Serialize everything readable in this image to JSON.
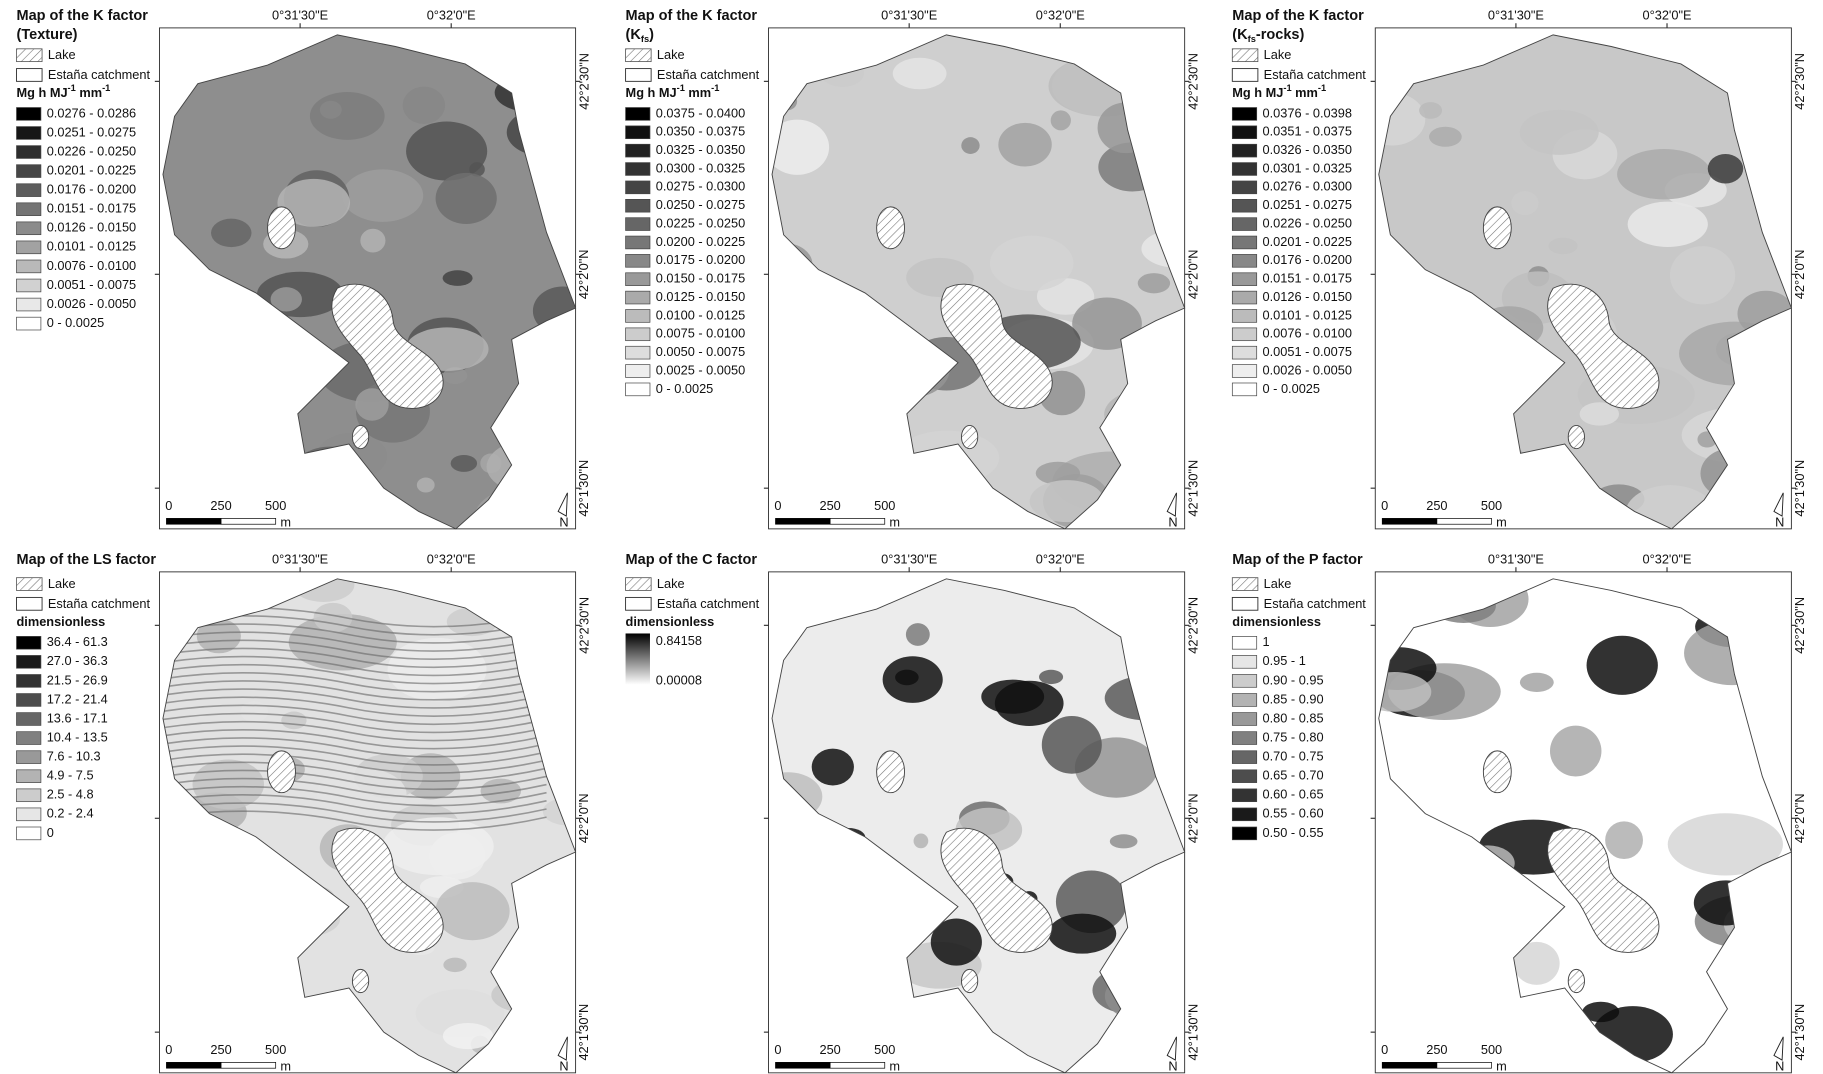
{
  "panels": [
    {
      "title": "Map of the K factor",
      "subtitle": [
        "(Texture)"
      ],
      "unit": [
        "Mg h MJ",
        "-1",
        " mm",
        "-1"
      ],
      "ramp": [
        "#000000",
        "#ffffff"
      ],
      "classes": [
        "0.0276 - 0.0286",
        "0.0251 - 0.0275",
        "0.0226 - 0.0250",
        "0.0201 - 0.0225",
        "0.0176 - 0.0200",
        "0.0151 - 0.0175",
        "0.0126 - 0.0150",
        "0.0101 - 0.0125",
        "0.0076 - 0.0100",
        "0.0051 - 0.0075",
        "0.0026 - 0.0050",
        "0 - 0.0025"
      ]
    },
    {
      "title": "Map of the K factor",
      "subtitle": [
        "(K",
        "fs",
        ")"
      ],
      "unit": [
        "Mg h MJ",
        "-1",
        " mm",
        "-1"
      ],
      "ramp": [
        "#000000",
        "#ffffff"
      ],
      "classes": [
        "0.0375 - 0.0400",
        "0.0350 - 0.0375",
        "0.0325 - 0.0350",
        "0.0300 - 0.0325",
        "0.0275 - 0.0300",
        "0.0250 - 0.0275",
        "0.0225 - 0.0250",
        "0.0200 - 0.0225",
        "0.0175 - 0.0200",
        "0.0150 - 0.0175",
        "0.0125 - 0.0150",
        "0.0100 - 0.0125",
        "0.0075 - 0.0100",
        "0.0050 - 0.0075",
        "0.0025 - 0.0050",
        "0 - 0.0025"
      ]
    },
    {
      "title": "Map of the K factor",
      "subtitle": [
        "(K",
        "fs",
        "-rocks)"
      ],
      "unit": [
        "Mg h MJ",
        "-1",
        " mm",
        "-1"
      ],
      "ramp": [
        "#000000",
        "#ffffff"
      ],
      "classes": [
        "0.0376 - 0.0398",
        "0.0351 - 0.0375",
        "0.0326 - 0.0350",
        "0.0301 - 0.0325",
        "0.0276 - 0.0300",
        "0.0251 - 0.0275",
        "0.0226 - 0.0250",
        "0.0201 - 0.0225",
        "0.0176 - 0.0200",
        "0.0151 - 0.0175",
        "0.0126 - 0.0150",
        "0.0101 - 0.0125",
        "0.0076 - 0.0100",
        "0.0051 - 0.0075",
        "0.0026 - 0.0050",
        "0 - 0.0025"
      ]
    },
    {
      "title": "Map of the LS factor",
      "unit": [
        "dimensionless"
      ],
      "ramp": [
        "#000000",
        "#ffffff"
      ],
      "classes": [
        "36.4 - 61.3",
        "27.0 - 36.3",
        "21.5 - 26.9",
        "17.2 - 21.4",
        "13.6 - 17.1",
        "10.4 - 13.5",
        "7.6 - 10.3",
        "4.9 - 7.5",
        "2.5 - 4.8",
        "0.2 - 2.4",
        "0"
      ]
    },
    {
      "title": "Map of the C factor",
      "unit": [
        "dimensionless"
      ],
      "ramp": [
        "#000000",
        "#ffffff"
      ],
      "gradient": {
        "max": "0.84158",
        "min": "0.00008"
      }
    },
    {
      "title": "Map of the P factor",
      "unit": [
        "dimensionless"
      ],
      "ramp": [
        "#ffffff",
        "#000000"
      ],
      "classes": [
        "1",
        "0.95 - 1",
        "0.90 - 0.95",
        "0.85 - 0.90",
        "0.80 - 0.85",
        "0.75 - 0.80",
        "0.70 - 0.75",
        "0.65 - 0.70",
        "0.60 - 0.65",
        "0.55 - 0.60",
        "0.50 - 0.55"
      ]
    }
  ],
  "legend": {
    "lake": "Lake",
    "catchment": "Estaña catchment"
  },
  "axes": {
    "lon": [
      "0°31'30\"E",
      "0°32'0\"E"
    ],
    "lat": [
      "42°2'30\"N",
      "42°2'0\"N",
      "42°1'30\"N"
    ]
  },
  "scale": {
    "labels": [
      "0",
      "250",
      "500"
    ],
    "unit": "m"
  },
  "north": "N"
}
